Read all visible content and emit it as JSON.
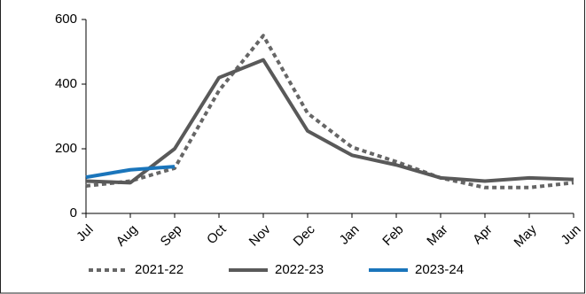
{
  "chart_data": {
    "type": "line",
    "categories": [
      "Jul",
      "Aug",
      "Sep",
      "Oct",
      "Nov",
      "Dec",
      "Jan",
      "Feb",
      "Mar",
      "Apr",
      "May",
      "Jun"
    ],
    "series": [
      {
        "name": "2021-22",
        "color": "#666666",
        "style": "dotted",
        "values": [
          85,
          100,
          140,
          380,
          550,
          310,
          205,
          160,
          110,
          80,
          80,
          95
        ]
      },
      {
        "name": "2022-23",
        "color": "#595959",
        "style": "solid",
        "values": [
          100,
          95,
          200,
          420,
          475,
          255,
          180,
          150,
          110,
          100,
          110,
          105
        ]
      },
      {
        "name": "2023-24",
        "color": "#1a75bb",
        "style": "solid",
        "values": [
          112,
          135,
          145,
          null,
          null,
          null,
          null,
          null,
          null,
          null,
          null,
          null
        ]
      }
    ],
    "ylim": [
      0,
      600
    ],
    "yticks": [
      0,
      200,
      400,
      600
    ],
    "grid": false,
    "legend": "bottom"
  }
}
